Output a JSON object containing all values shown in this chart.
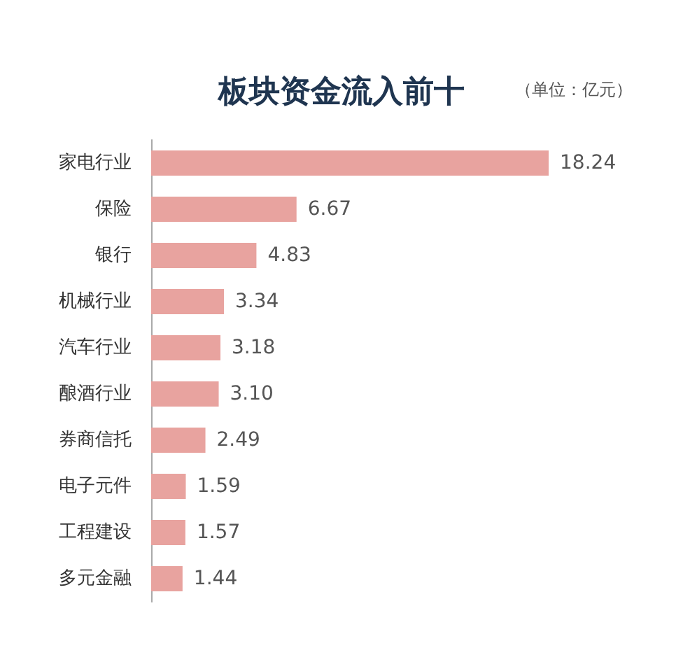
{
  "chart_data": {
    "type": "bar",
    "orientation": "horizontal",
    "title": "板块资金流入前十",
    "annotations": [
      "（单位：亿元）"
    ],
    "categories": [
      "家电行业",
      "保险",
      "银行",
      "机械行业",
      "汽车行业",
      "酿酒行业",
      "券商信托",
      "电子元件",
      "工程建设",
      "多元金融"
    ],
    "values": [
      18.24,
      6.67,
      4.83,
      3.34,
      3.18,
      3.1,
      2.49,
      1.59,
      1.57,
      1.44
    ],
    "value_labels": [
      "18.24",
      "6.67",
      "4.83",
      "3.34",
      "3.18",
      "3.10",
      "2.49",
      "1.59",
      "1.57",
      "1.44"
    ],
    "color": "#e8a39f"
  }
}
